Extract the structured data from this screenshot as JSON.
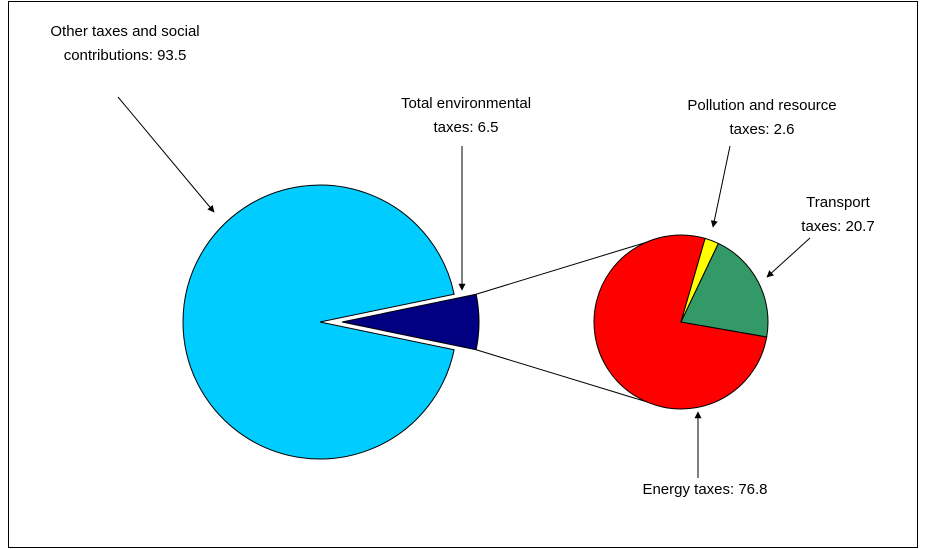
{
  "chart_data": [
    {
      "type": "pie",
      "values": [
        93.5,
        6.5
      ],
      "value_labels": [
        "Other taxes and social contributions: 93.5",
        "Total environmental taxes: 6.5"
      ],
      "colors": [
        "#00ccff",
        "#000080"
      ]
    },
    {
      "type": "pie",
      "values": [
        76.8,
        2.6,
        20.7
      ],
      "value_labels": [
        "Energy taxes: 76.8",
        "Pollution and resource taxes: 2.6",
        "Transport taxes: 20.7"
      ],
      "colors": [
        "#ff0000",
        "#ffff00",
        "#339966"
      ]
    }
  ]
}
